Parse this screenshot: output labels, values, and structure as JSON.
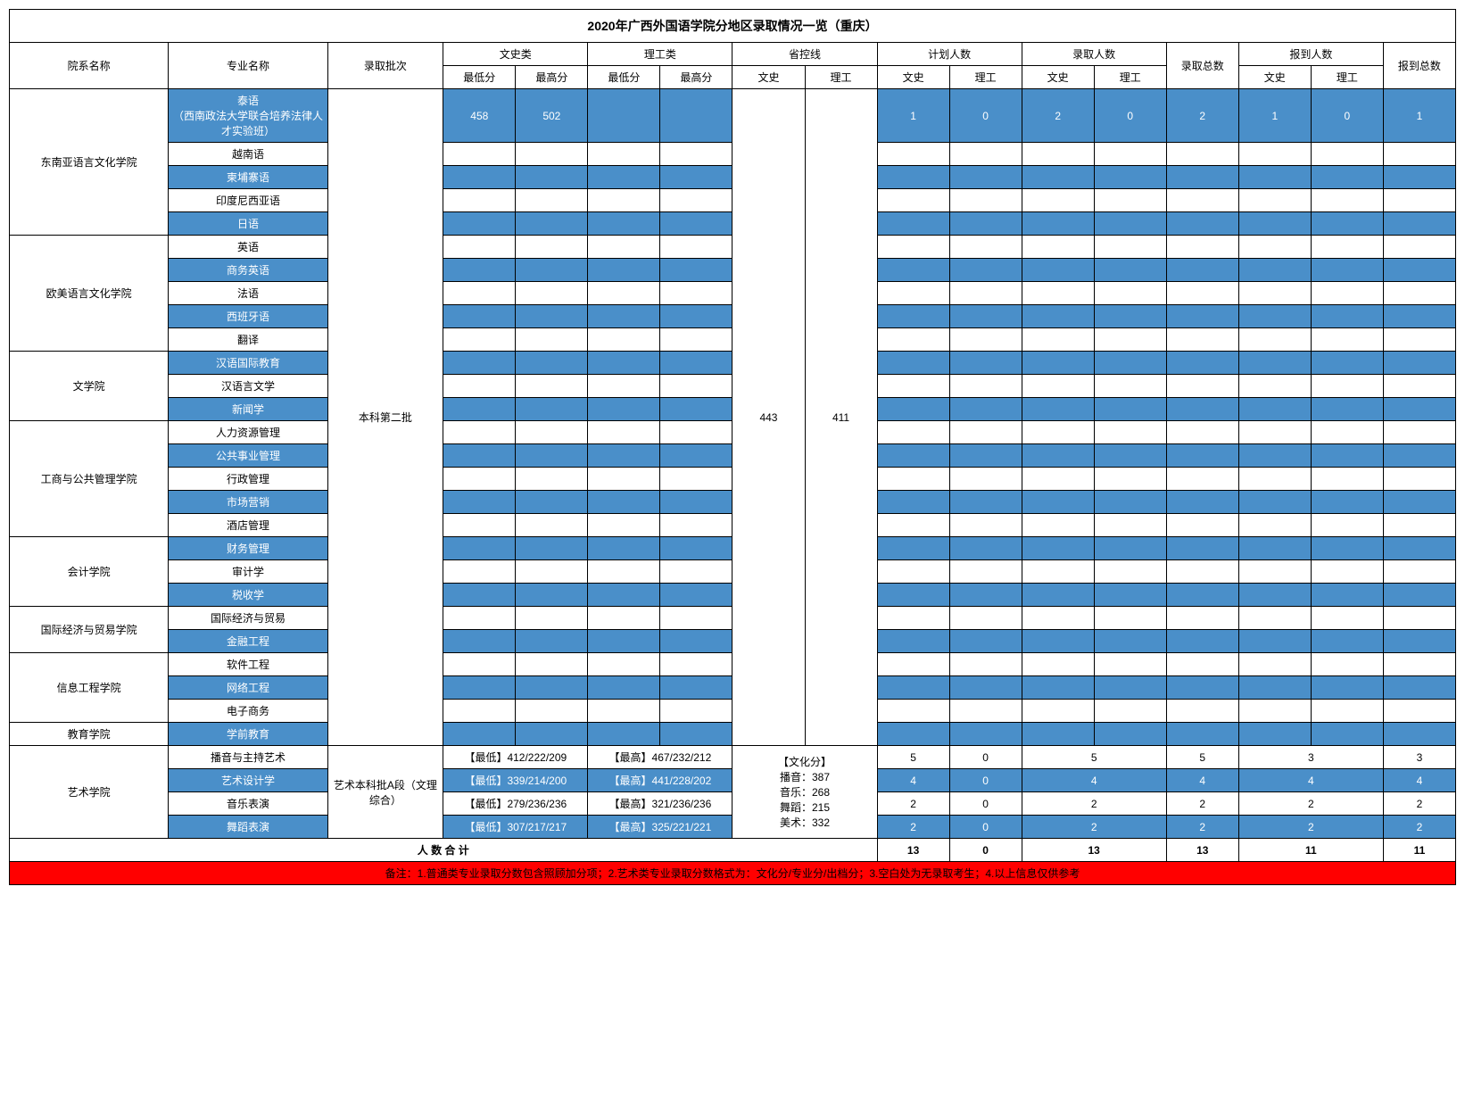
{
  "title": "2020年广西外国语学院分地区录取情况一览（重庆）",
  "headers": {
    "dept": "院系名称",
    "major": "专业名称",
    "batch": "录取批次",
    "wenshi": "文史类",
    "ligong": "理工类",
    "control": "省控线",
    "plan": "计划人数",
    "admit": "录取人数",
    "admit_total": "录取总数",
    "report": "报到人数",
    "report_total": "报到总数",
    "min": "最低分",
    "max": "最高分",
    "ws": "文史",
    "lg": "理工"
  },
  "batch_regular": "本科第二批",
  "batch_art": "艺术本科批A段（文理综合）",
  "control_ws": "443",
  "control_lg": "411",
  "control_art": "【文化分】\n播音：387\n音乐：268\n舞蹈：215\n美术：332",
  "depts": [
    {
      "name": "东南亚语言文化学院",
      "majors": [
        "泰语\n（西南政法大学联合培养法律人才实验班）",
        "越南语",
        "柬埔寨语",
        "印度尼西亚语",
        "日语"
      ]
    },
    {
      "name": "欧美语言文化学院",
      "majors": [
        "英语",
        "商务英语",
        "法语",
        "西班牙语",
        "翻译"
      ]
    },
    {
      "name": "文学院",
      "majors": [
        "汉语国际教育",
        "汉语言文学",
        "新闻学"
      ]
    },
    {
      "name": "工商与公共管理学院",
      "majors": [
        "人力资源管理",
        "公共事业管理",
        "行政管理",
        "市场营销",
        "酒店管理"
      ]
    },
    {
      "name": "会计学院",
      "majors": [
        "财务管理",
        "审计学",
        "税收学"
      ]
    },
    {
      "name": "国际经济与贸易学院",
      "majors": [
        "国际经济与贸易",
        "金融工程"
      ]
    },
    {
      "name": "信息工程学院",
      "majors": [
        "软件工程",
        "网络工程",
        "电子商务"
      ]
    },
    {
      "name": "教育学院",
      "majors": [
        "学前教育"
      ]
    }
  ],
  "first_row_data": {
    "ws_min": "458",
    "ws_max": "502",
    "plan_ws": "1",
    "plan_lg": "0",
    "admit_ws": "2",
    "admit_lg": "0",
    "admit_total": "2",
    "report_ws": "1",
    "report_lg": "0",
    "report_total": "1"
  },
  "art_dept": "艺术学院",
  "art_rows": [
    {
      "major": "播音与主持艺术",
      "lo": "【最低】412/222/209",
      "hi": "【最高】467/232/212",
      "plan_ws": "5",
      "plan_lg": "0",
      "admit": "5",
      "admit_total": "5",
      "report": "3",
      "report_total": "3",
      "blue": false
    },
    {
      "major": "艺术设计学",
      "lo": "【最低】339/214/200",
      "hi": "【最高】441/228/202",
      "plan_ws": "4",
      "plan_lg": "0",
      "admit": "4",
      "admit_total": "4",
      "report": "4",
      "report_total": "4",
      "blue": true
    },
    {
      "major": "音乐表演",
      "lo": "【最低】279/236/236",
      "hi": "【最高】321/236/236",
      "plan_ws": "2",
      "plan_lg": "0",
      "admit": "2",
      "admit_total": "2",
      "report": "2",
      "report_total": "2",
      "blue": false
    },
    {
      "major": "舞蹈表演",
      "lo": "【最低】307/217/217",
      "hi": "【最高】325/221/221",
      "plan_ws": "2",
      "plan_lg": "0",
      "admit": "2",
      "admit_total": "2",
      "report": "2",
      "report_total": "2",
      "blue": true
    }
  ],
  "totals": {
    "label": "人 数 合 计",
    "plan_ws": "13",
    "plan_lg": "0",
    "admit": "13",
    "admit_total": "13",
    "report": "11",
    "report_total": "11"
  },
  "footer": "备注：1.普通类专业录取分数包含照顾加分项；2.艺术类专业录取分数格式为：文化分/专业分/出档分；3.空白处为无录取考生；4.以上信息仅供参考",
  "colors": {
    "blue": "#4a8fc9",
    "red": "#ff0000",
    "white": "#ffffff",
    "border": "#000000"
  }
}
